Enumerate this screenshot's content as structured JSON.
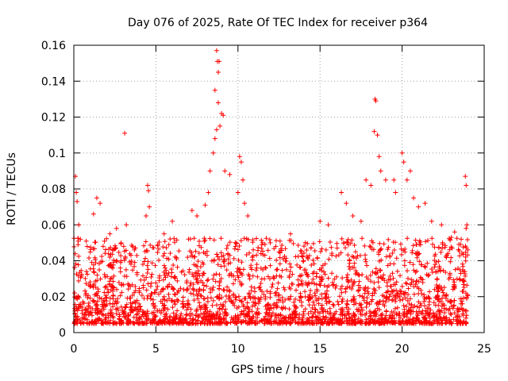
{
  "chart_data": {
    "type": "scatter",
    "title": "Day 076 of 2025, Rate Of TEC Index for receiver p364",
    "xlabel": "GPS time / hours",
    "ylabel": "ROTI / TECUs",
    "xlim": [
      0,
      25
    ],
    "ylim": [
      0,
      0.16
    ],
    "x_ticks": [
      0,
      5,
      10,
      15,
      20,
      25
    ],
    "x_tick_labels": [
      "0",
      "5",
      "10",
      "15",
      "20",
      "25"
    ],
    "y_ticks": [
      0,
      0.02,
      0.04,
      0.06,
      0.08,
      0.1,
      0.12,
      0.14,
      0.16
    ],
    "y_tick_labels": [
      "0",
      "0.02",
      "0.04",
      "0.06",
      "0.08",
      "0.1",
      "0.12",
      "0.14",
      "0.16"
    ],
    "grid": true,
    "marker": "+",
    "marker_color": "#ff0000",
    "series": [
      {
        "name": "ROTI",
        "points": [
          [
            0.1,
            0.087
          ],
          [
            0.15,
            0.078
          ],
          [
            0.2,
            0.073
          ],
          [
            0.3,
            0.06
          ],
          [
            0.4,
            0.052
          ],
          [
            1.2,
            0.066
          ],
          [
            1.4,
            0.075
          ],
          [
            1.6,
            0.072
          ],
          [
            2.2,
            0.055
          ],
          [
            2.6,
            0.058
          ],
          [
            3.1,
            0.111
          ],
          [
            3.2,
            0.06
          ],
          [
            4.5,
            0.082
          ],
          [
            4.55,
            0.079
          ],
          [
            4.4,
            0.065
          ],
          [
            4.6,
            0.07
          ],
          [
            5.5,
            0.055
          ],
          [
            6.0,
            0.062
          ],
          [
            7.2,
            0.068
          ],
          [
            7.5,
            0.065
          ],
          [
            8.0,
            0.071
          ],
          [
            8.2,
            0.078
          ],
          [
            8.3,
            0.09
          ],
          [
            8.5,
            0.1
          ],
          [
            8.6,
            0.108
          ],
          [
            8.6,
            0.135
          ],
          [
            8.7,
            0.157
          ],
          [
            8.75,
            0.151
          ],
          [
            8.8,
            0.145
          ],
          [
            8.85,
            0.151
          ],
          [
            8.8,
            0.128
          ],
          [
            9.0,
            0.122
          ],
          [
            9.1,
            0.121
          ],
          [
            8.9,
            0.115
          ],
          [
            8.7,
            0.113
          ],
          [
            9.2,
            0.09
          ],
          [
            9.5,
            0.088
          ],
          [
            10.1,
            0.098
          ],
          [
            10.2,
            0.095
          ],
          [
            10.3,
            0.085
          ],
          [
            10.0,
            0.078
          ],
          [
            10.4,
            0.072
          ],
          [
            10.6,
            0.065
          ],
          [
            11.5,
            0.05
          ],
          [
            12.5,
            0.045
          ],
          [
            13.2,
            0.055
          ],
          [
            14.0,
            0.04
          ],
          [
            15.0,
            0.062
          ],
          [
            15.5,
            0.06
          ],
          [
            16.3,
            0.078
          ],
          [
            16.6,
            0.072
          ],
          [
            17.0,
            0.065
          ],
          [
            17.5,
            0.062
          ],
          [
            17.8,
            0.085
          ],
          [
            18.1,
            0.082
          ],
          [
            18.3,
            0.112
          ],
          [
            18.35,
            0.13
          ],
          [
            18.4,
            0.129
          ],
          [
            18.5,
            0.11
          ],
          [
            18.6,
            0.098
          ],
          [
            18.7,
            0.09
          ],
          [
            19.0,
            0.085
          ],
          [
            19.5,
            0.085
          ],
          [
            19.6,
            0.078
          ],
          [
            20.0,
            0.1
          ],
          [
            20.1,
            0.095
          ],
          [
            20.3,
            0.085
          ],
          [
            20.5,
            0.09
          ],
          [
            20.7,
            0.075
          ],
          [
            21.0,
            0.07
          ],
          [
            21.4,
            0.072
          ],
          [
            21.8,
            0.062
          ],
          [
            22.4,
            0.06
          ],
          [
            23.0,
            0.053
          ],
          [
            23.2,
            0.056
          ],
          [
            23.6,
            0.052
          ],
          [
            23.85,
            0.087
          ],
          [
            23.9,
            0.082
          ],
          [
            23.95,
            0.06
          ],
          [
            23.9,
            0.058
          ]
        ],
        "baseline_band": {
          "x_range": [
            0,
            24
          ],
          "typical_min": 0.005,
          "typical_max": 0.035
        }
      }
    ]
  }
}
